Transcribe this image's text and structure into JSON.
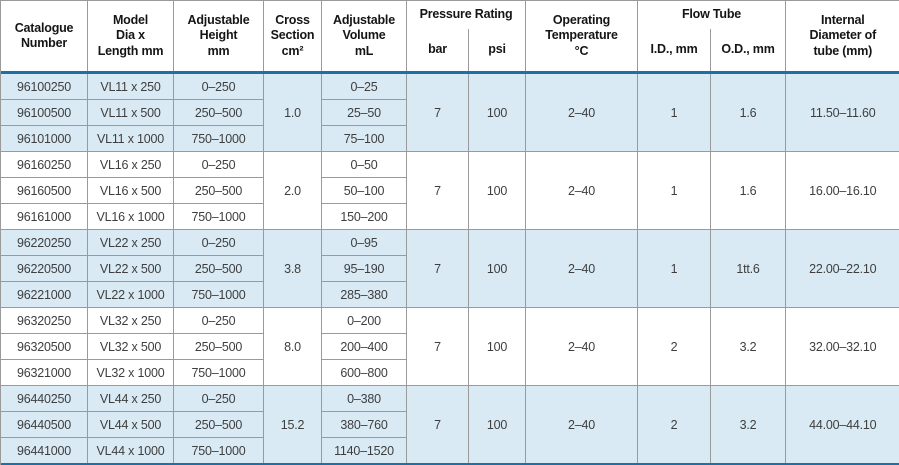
{
  "colors": {
    "accent_blue": "#1d6fa8",
    "band_blue": "#d9eaf4",
    "border_gray": "#9a9a9a"
  },
  "table": {
    "columns": [
      {
        "id": "catalogue",
        "label": "Catalogue\nNumber"
      },
      {
        "id": "model",
        "label": "Model\nDia x\nLength mm"
      },
      {
        "id": "height",
        "label": "Adjustable\nHeight\nmm"
      },
      {
        "id": "cross_section",
        "label": "Cross\nSection\ncm²"
      },
      {
        "id": "volume",
        "label": "Adjustable\nVolume\nmL"
      },
      {
        "id": "pressure_rating",
        "label": "Pressure Rating",
        "children": [
          "bar",
          "psi"
        ]
      },
      {
        "id": "operating_temperature",
        "label": "Operating\nTemperature\n°C"
      },
      {
        "id": "flow_tube",
        "label": "Flow Tube",
        "children": [
          "I.D., mm",
          "O.D., mm"
        ]
      },
      {
        "id": "internal_diameter",
        "label": "Internal\nDiameter of\ntube (mm)"
      }
    ],
    "groups": [
      {
        "rows": [
          {
            "catalogue": "96100250",
            "model": "VL11 x 250",
            "height": "0–250",
            "volume": "0–25"
          },
          {
            "catalogue": "96100500",
            "model": "VL11 x 500",
            "height": "250–500",
            "volume": "25–50"
          },
          {
            "catalogue": "96101000",
            "model": "VL11 x 1000",
            "height": "750–1000",
            "volume": "75–100"
          }
        ],
        "cross_section": "1.0",
        "bar": "7",
        "psi": "100",
        "operating_temperature": "2–40",
        "id_mm": "1",
        "od_mm": "1.6",
        "internal_diameter": "11.50–11.60"
      },
      {
        "rows": [
          {
            "catalogue": "96160250",
            "model": "VL16 x 250",
            "height": "0–250",
            "volume": "0–50"
          },
          {
            "catalogue": "96160500",
            "model": "VL16 x 500",
            "height": "250–500",
            "volume": "50–100"
          },
          {
            "catalogue": "96161000",
            "model": "VL16 x 1000",
            "height": "750–1000",
            "volume": "150–200"
          }
        ],
        "cross_section": "2.0",
        "bar": "7",
        "psi": "100",
        "operating_temperature": "2–40",
        "id_mm": "1",
        "od_mm": "1.6",
        "internal_diameter": "16.00–16.10"
      },
      {
        "rows": [
          {
            "catalogue": "96220250",
            "model": "VL22 x 250",
            "height": "0–250",
            "volume": "0–95"
          },
          {
            "catalogue": "96220500",
            "model": "VL22 x 500",
            "height": "250–500",
            "volume": "95–190"
          },
          {
            "catalogue": "96221000",
            "model": "VL22 x 1000",
            "height": "750–1000",
            "volume": "285–380"
          }
        ],
        "cross_section": "3.8",
        "bar": "7",
        "psi": "100",
        "operating_temperature": "2–40",
        "id_mm": "1",
        "od_mm": "1tt.6",
        "internal_diameter": "22.00–22.10"
      },
      {
        "rows": [
          {
            "catalogue": "96320250",
            "model": "VL32 x 250",
            "height": "0–250",
            "volume": "0–200"
          },
          {
            "catalogue": "96320500",
            "model": "VL32 x 500",
            "height": "250–500",
            "volume": "200–400"
          },
          {
            "catalogue": "96321000",
            "model": "VL32 x 1000",
            "height": "750–1000",
            "volume": "600–800"
          }
        ],
        "cross_section": "8.0",
        "bar": "7",
        "psi": "100",
        "operating_temperature": "2–40",
        "id_mm": "2",
        "od_mm": "3.2",
        "internal_diameter": "32.00–32.10"
      },
      {
        "rows": [
          {
            "catalogue": "96440250",
            "model": "VL44 x 250",
            "height": "0–250",
            "volume": "0–380"
          },
          {
            "catalogue": "96440500",
            "model": "VL44 x 500",
            "height": "250–500",
            "volume": "380–760"
          },
          {
            "catalogue": "96441000",
            "model": "VL44 x 1000",
            "height": "750–1000",
            "volume": "1140–1520"
          }
        ],
        "cross_section": "15.2",
        "bar": "7",
        "psi": "100",
        "operating_temperature": "2–40",
        "id_mm": "2",
        "od_mm": "3.2",
        "internal_diameter": "44.00–44.10"
      }
    ]
  }
}
